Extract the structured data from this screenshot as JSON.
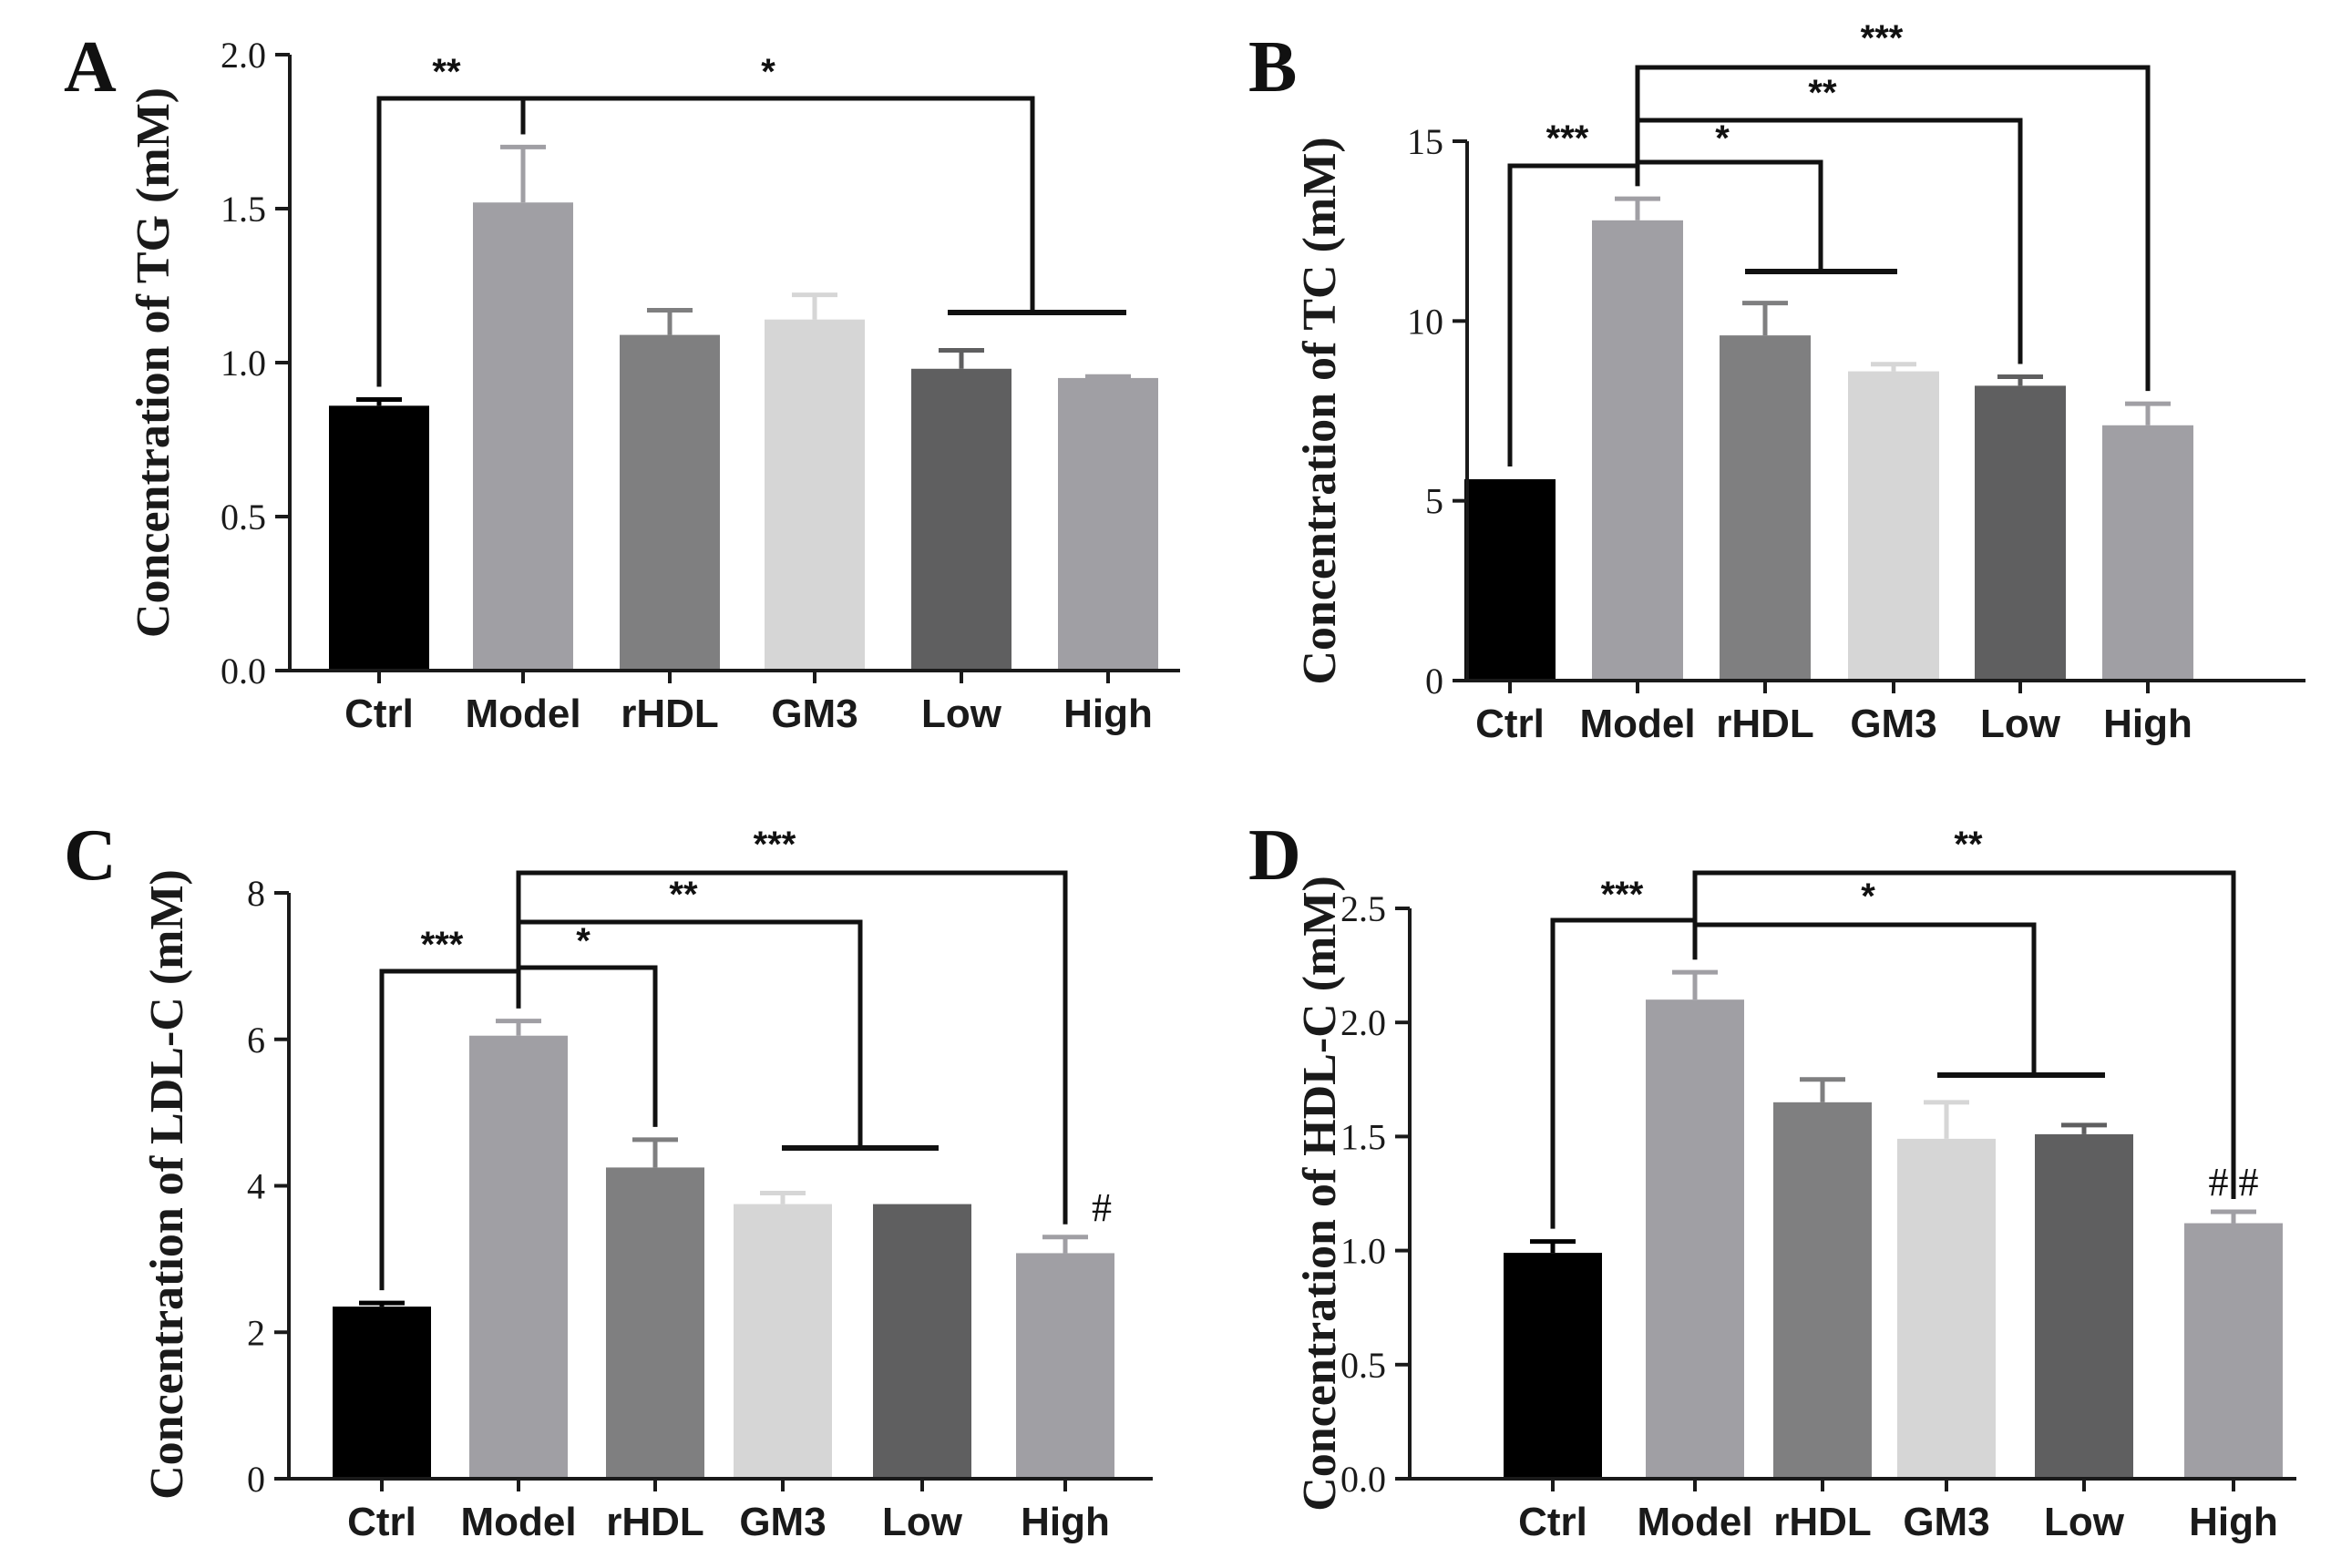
{
  "colors": {
    "Ctrl": "#000000",
    "Model": "#a09fa4",
    "rHDL": "#7f7f80",
    "GM3": "#d6d6d6",
    "Low": "#5f5f60",
    "High": "#a09fa4",
    "axis": "#1a1a1a",
    "bracket": "#111111"
  },
  "chart_data": [
    {
      "type": "bar",
      "panel": "A",
      "title": "",
      "xlabel": "",
      "ylabel": "Concentration of TG (mM)",
      "categories": [
        "Ctrl",
        "Model",
        "rHDL",
        "GM3",
        "Low",
        "High"
      ],
      "values": [
        0.86,
        1.52,
        1.09,
        1.14,
        0.98,
        0.95
      ],
      "errors": [
        0.02,
        0.18,
        0.08,
        0.08,
        0.06,
        0.005
      ],
      "ylim": [
        0,
        2.0
      ],
      "yticks": [
        "0.0",
        "0.5",
        "1.0",
        "1.5",
        "2.0"
      ],
      "annotations": [
        {
          "type": "bracket",
          "from": "Ctrl",
          "to": "Model",
          "label": "**"
        },
        {
          "type": "bracket_group",
          "from": "Model",
          "to_group": [
            "Low",
            "High"
          ],
          "label": "*"
        }
      ],
      "markers": []
    },
    {
      "type": "bar",
      "panel": "B",
      "title": "",
      "xlabel": "",
      "ylabel": "Concentration of TC (mM)",
      "categories": [
        "Ctrl",
        "Model",
        "rHDL",
        "GM3",
        "Low",
        "High"
      ],
      "values": [
        5.6,
        12.8,
        9.6,
        8.6,
        8.2,
        7.1
      ],
      "errors": [
        0.0,
        0.6,
        0.9,
        0.2,
        0.25,
        0.6
      ],
      "ylim": [
        0,
        15
      ],
      "yticks": [
        "0",
        "5",
        "10",
        "15"
      ],
      "annotations": [
        {
          "type": "bracket",
          "from": "Ctrl",
          "to": "Model",
          "label": "***"
        },
        {
          "type": "bracket_group",
          "from": "Model",
          "to_group": [
            "rHDL",
            "GM3"
          ],
          "label": "*"
        },
        {
          "type": "bracket",
          "from": "Model",
          "to": "Low",
          "label": "**"
        },
        {
          "type": "bracket",
          "from": "Model",
          "to": "High",
          "label": "***"
        }
      ],
      "markers": []
    },
    {
      "type": "bar",
      "panel": "C",
      "title": "",
      "xlabel": "",
      "ylabel": "Concentration of LDL-C (mM)",
      "categories": [
        "Ctrl",
        "Model",
        "rHDL",
        "GM3",
        "Low",
        "High"
      ],
      "values": [
        2.35,
        6.05,
        4.25,
        3.75,
        3.75,
        3.08
      ],
      "errors": [
        0.05,
        0.2,
        0.38,
        0.15,
        0.0,
        0.22
      ],
      "ylim": [
        0,
        8
      ],
      "yticks": [
        "0",
        "2",
        "4",
        "6",
        "8"
      ],
      "annotations": [
        {
          "type": "bracket",
          "from": "Ctrl",
          "to": "Model",
          "label": "***"
        },
        {
          "type": "bracket",
          "from": "Model",
          "to": "rHDL",
          "label": "*"
        },
        {
          "type": "bracket_group",
          "from": "Model",
          "to_group": [
            "GM3",
            "Low"
          ],
          "label": "**"
        },
        {
          "type": "bracket",
          "from": "Model",
          "to": "High",
          "label": "***"
        }
      ],
      "markers": [
        {
          "category": "High",
          "label": "#"
        }
      ]
    },
    {
      "type": "bar",
      "panel": "D",
      "title": "",
      "xlabel": "",
      "ylabel": "Concentration of HDL-C (mM)",
      "categories": [
        "Ctrl",
        "Model",
        "rHDL",
        "GM3",
        "Low",
        "High"
      ],
      "values": [
        0.99,
        2.1,
        1.65,
        1.49,
        1.51,
        1.12
      ],
      "errors": [
        0.05,
        0.12,
        0.1,
        0.16,
        0.04,
        0.05
      ],
      "ylim": [
        0,
        2.5
      ],
      "yticks": [
        "0.0",
        "0.5",
        "1.0",
        "1.5",
        "2.0",
        "2.5"
      ],
      "annotations": [
        {
          "type": "bracket",
          "from": "Ctrl",
          "to": "Model",
          "label": "***"
        },
        {
          "type": "bracket_group",
          "from": "Model",
          "to_group": [
            "GM3",
            "Low"
          ],
          "label": "*"
        },
        {
          "type": "bracket",
          "from": "Model",
          "to": "High",
          "label": "**"
        }
      ],
      "markers": [
        {
          "category": "High",
          "label": "# #"
        }
      ]
    }
  ]
}
